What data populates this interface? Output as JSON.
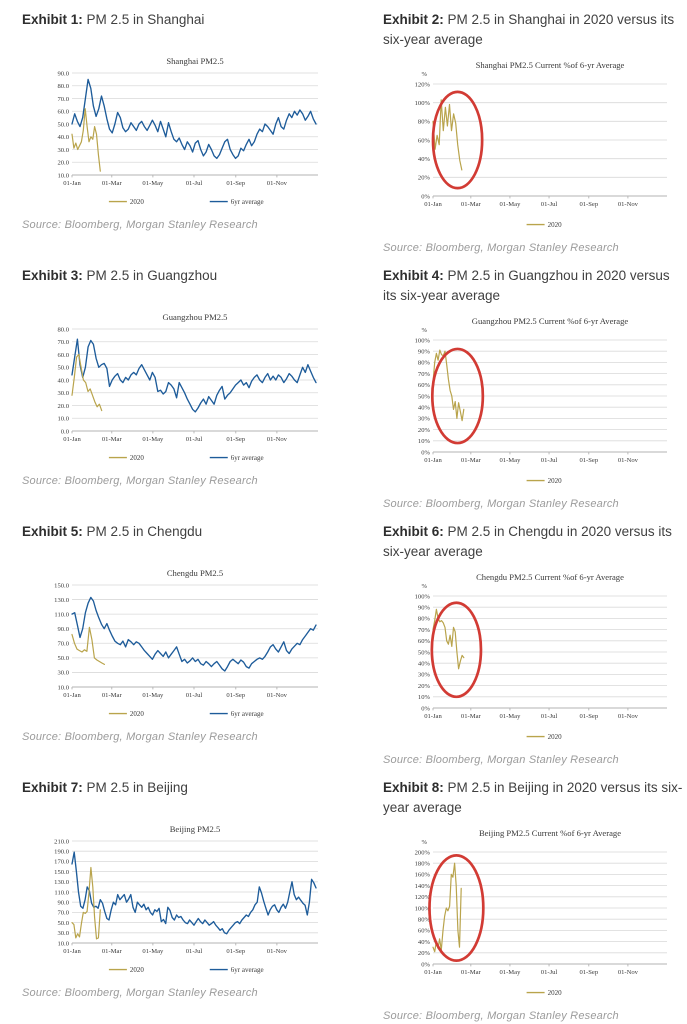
{
  "colors": {
    "series_2020": "#b9a44c",
    "series_6yr": "#1e5c9a",
    "annotation_red": "#d23b34",
    "grid": "#d9d9d9",
    "axis": "#b3b3b3",
    "chart_text": "#3a3a3a",
    "header_text": "#404040",
    "source_text": "#9b9b9b"
  },
  "panels": [
    {
      "exhibit_label": "Exhibit 1:",
      "description": "PM 2.5 in Shanghai",
      "source": "Source: Bloomberg, Morgan Stanley Research"
    },
    {
      "exhibit_label": "Exhibit 2:",
      "description": "PM 2.5 in Shanghai in 2020 versus its six-year average",
      "source": "Source: Bloomberg, Morgan Stanley Research"
    },
    {
      "exhibit_label": "Exhibit 3:",
      "description": "PM 2.5 in Guangzhou",
      "source": "Source: Bloomberg, Morgan Stanley Research"
    },
    {
      "exhibit_label": "Exhibit 4:",
      "description": "PM 2.5 in Guangzhou in 2020 versus its six-year average",
      "source": "Source: Bloomberg, Morgan Stanley Research"
    },
    {
      "exhibit_label": "Exhibit 5:",
      "description": "PM 2.5 in Chengdu",
      "source": "Source: Bloomberg, Morgan Stanley Research"
    },
    {
      "exhibit_label": "Exhibit 6:",
      "description": "PM 2.5 in Chengdu in 2020 versus its six-year average",
      "source": "Source: Bloomberg, Morgan Stanley Research"
    },
    {
      "exhibit_label": "Exhibit 7:",
      "description": "PM 2.5 in Beijing",
      "source": "Source: Bloomberg, Morgan Stanley Research"
    },
    {
      "exhibit_label": "Exhibit 8:",
      "description": "PM 2.5 in Beijing in 2020 versus its six-year average",
      "source": "Source: Bloomberg, Morgan Stanley Research"
    }
  ],
  "chart_data": [
    {
      "type": "line",
      "title": "Shanghai PM2.5",
      "ylim": [
        10,
        90
      ],
      "ytick_step": 10,
      "ytick_format": "1dp",
      "percent_label": null,
      "xticks": [
        "01-Jan",
        "01-Mar",
        "01-May",
        "01-Jul",
        "01-Sep",
        "01-Nov"
      ],
      "legend": [
        "2020",
        "6yr average"
      ],
      "annotation_ellipse": null,
      "series": [
        {
          "name": "2020",
          "color": "series_2020",
          "x_range": [
            0,
            42
          ],
          "values": [
            42,
            31,
            35,
            30,
            33,
            36,
            45,
            62,
            48,
            36,
            40,
            38,
            48,
            42,
            26,
            13
          ]
        },
        {
          "name": "6yr average",
          "color": "series_6yr",
          "x_range": [
            0,
            362
          ],
          "values": [
            50,
            58,
            52,
            48,
            55,
            70,
            85,
            78,
            64,
            56,
            62,
            72,
            64,
            54,
            46,
            43,
            50,
            59,
            55,
            47,
            44,
            46,
            51,
            48,
            45,
            50,
            52,
            48,
            45,
            49,
            53,
            49,
            44,
            52,
            46,
            40,
            51,
            44,
            38,
            36,
            39,
            34,
            30,
            36,
            33,
            28,
            35,
            37,
            30,
            25,
            28,
            34,
            30,
            25,
            23,
            26,
            31,
            36,
            38,
            30,
            26,
            23,
            25,
            31,
            29,
            34,
            38,
            33,
            36,
            42,
            46,
            44,
            50,
            48,
            45,
            42,
            50,
            55,
            48,
            46,
            53,
            58,
            55,
            60,
            57,
            61,
            58,
            53,
            56,
            60,
            54,
            50
          ]
        }
      ]
    },
    {
      "type": "line",
      "title": "Shanghai PM2.5 Current %of 6-yr Average",
      "ylim": [
        0,
        120
      ],
      "ytick_step": 20,
      "ytick_format": "pct",
      "percent_label": "%",
      "xticks": [
        "01-Jan",
        "01-Mar",
        "01-May",
        "01-Jul",
        "01-Sep",
        "01-Nov"
      ],
      "legend": [
        "2020"
      ],
      "annotation_ellipse": {
        "cx_frac": 0.105,
        "cy_frac": 0.5,
        "rx_frac": 0.105,
        "ry_frac": 0.43
      },
      "series": [
        {
          "name": "2020",
          "color": "series_2020",
          "x_range": [
            0,
            45
          ],
          "values": [
            80,
            50,
            65,
            55,
            103,
            70,
            95,
            75,
            98,
            70,
            88,
            78,
            55,
            38,
            28
          ]
        }
      ]
    },
    {
      "type": "line",
      "title": "Guangzhou PM2.5",
      "ylim": [
        0,
        80
      ],
      "ytick_step": 10,
      "ytick_format": "1dp",
      "percent_label": null,
      "xticks": [
        "01-Jan",
        "01-Mar",
        "01-May",
        "01-Jul",
        "01-Sep",
        "01-Nov"
      ],
      "legend": [
        "2020",
        "6yr average"
      ],
      "annotation_ellipse": null,
      "series": [
        {
          "name": "2020",
          "color": "series_2020",
          "x_range": [
            0,
            44
          ],
          "values": [
            28,
            42,
            58,
            60,
            50,
            40,
            38,
            31,
            33,
            28,
            23,
            19,
            21,
            16
          ]
        },
        {
          "name": "6yr average",
          "color": "series_6yr",
          "x_range": [
            0,
            362
          ],
          "values": [
            44,
            58,
            72,
            52,
            42,
            50,
            66,
            71,
            68,
            57,
            50,
            52,
            53,
            49,
            35,
            40,
            43,
            45,
            40,
            38,
            42,
            40,
            44,
            46,
            44,
            49,
            52,
            48,
            44,
            40,
            46,
            42,
            31,
            32,
            29,
            31,
            38,
            36,
            33,
            26,
            38,
            34,
            30,
            25,
            21,
            17,
            15,
            18,
            22,
            25,
            21,
            27,
            24,
            21,
            28,
            32,
            35,
            25,
            28,
            30,
            33,
            36,
            38,
            40,
            36,
            38,
            34,
            39,
            42,
            44,
            40,
            38,
            42,
            45,
            40,
            43,
            40,
            44,
            42,
            38,
            41,
            45,
            43,
            40,
            38,
            44,
            50,
            46,
            52,
            47,
            42,
            38
          ]
        }
      ]
    },
    {
      "type": "line",
      "title": "Guangzhou PM2.5 Current %of 6-yr Average",
      "ylim": [
        0,
        100
      ],
      "ytick_step": 10,
      "ytick_format": "pct",
      "percent_label": "%",
      "xticks": [
        "01-Jan",
        "01-Mar",
        "01-May",
        "01-Jul",
        "01-Sep",
        "01-Nov"
      ],
      "legend": [
        "2020"
      ],
      "annotation_ellipse": {
        "cx_frac": 0.105,
        "cy_frac": 0.5,
        "rx_frac": 0.108,
        "ry_frac": 0.42
      },
      "series": [
        {
          "name": "2020",
          "color": "series_2020",
          "x_range": [
            0,
            48
          ],
          "values": [
            62,
            80,
            88,
            82,
            91,
            87,
            86,
            90,
            78,
            65,
            55,
            50,
            38,
            45,
            30,
            44,
            36,
            28,
            38
          ]
        }
      ]
    },
    {
      "type": "line",
      "title": "Chengdu PM2.5",
      "ylim": [
        10,
        150
      ],
      "ytick_step": 20,
      "ytick_format": "1dp",
      "percent_label": null,
      "xticks": [
        "01-Jan",
        "01-Mar",
        "01-May",
        "01-Jul",
        "01-Sep",
        "01-Nov"
      ],
      "legend": [
        "2020",
        "6yr average"
      ],
      "annotation_ellipse": null,
      "series": [
        {
          "name": "2020",
          "color": "series_2020",
          "x_range": [
            0,
            48
          ],
          "values": [
            82,
            70,
            62,
            60,
            58,
            61,
            59,
            92,
            75,
            50,
            47,
            45,
            43,
            41
          ]
        },
        {
          "name": "6yr average",
          "color": "series_6yr",
          "x_range": [
            0,
            362
          ],
          "values": [
            110,
            112,
            95,
            78,
            90,
            112,
            125,
            133,
            128,
            115,
            105,
            96,
            90,
            97,
            88,
            80,
            73,
            70,
            68,
            73,
            65,
            75,
            72,
            68,
            72,
            70,
            65,
            60,
            56,
            52,
            48,
            55,
            60,
            56,
            52,
            58,
            50,
            55,
            60,
            65,
            55,
            45,
            48,
            43,
            46,
            50,
            45,
            48,
            42,
            40,
            45,
            42,
            38,
            42,
            45,
            40,
            35,
            32,
            38,
            45,
            48,
            45,
            42,
            47,
            44,
            38,
            36,
            42,
            45,
            48,
            50,
            48,
            52,
            58,
            65,
            68,
            62,
            58,
            65,
            72,
            60,
            56,
            62,
            66,
            70,
            68,
            75,
            80,
            85,
            90,
            88,
            95
          ]
        }
      ]
    },
    {
      "type": "line",
      "title": "Chengdu PM2.5 Current %of 6-yr Average",
      "ylim": [
        0,
        100
      ],
      "ytick_step": 10,
      "ytick_format": "pct",
      "percent_label": "%",
      "xticks": [
        "01-Jan",
        "01-Mar",
        "01-May",
        "01-Jul",
        "01-Sep",
        "01-Nov"
      ],
      "legend": [
        "2020"
      ],
      "annotation_ellipse": {
        "cx_frac": 0.1,
        "cy_frac": 0.48,
        "rx_frac": 0.105,
        "ry_frac": 0.42
      },
      "series": [
        {
          "name": "2020",
          "color": "series_2020",
          "x_range": [
            0,
            48
          ],
          "values": [
            70,
            78,
            88,
            80,
            77,
            78,
            76,
            72,
            60,
            57,
            65,
            55,
            72,
            68,
            50,
            35,
            42,
            47,
            45
          ]
        }
      ]
    },
    {
      "type": "line",
      "title": "Beijing PM2.5",
      "ylim": [
        10,
        210
      ],
      "ytick_step": 20,
      "ytick_format": "1dp",
      "percent_label": null,
      "xticks": [
        "01-Jan",
        "01-Mar",
        "01-May",
        "01-Jul",
        "01-Sep",
        "01-Nov"
      ],
      "legend": [
        "2020",
        "6yr average"
      ],
      "annotation_ellipse": null,
      "series": [
        {
          "name": "2020",
          "color": "series_2020",
          "x_range": [
            0,
            42
          ],
          "values": [
            50,
            46,
            20,
            28,
            22,
            48,
            70,
            68,
            72,
            110,
            158,
            120,
            60,
            18,
            20,
            75
          ]
        },
        {
          "name": "6yr average",
          "color": "series_6yr",
          "x_range": [
            0,
            362
          ],
          "values": [
            165,
            188,
            150,
            110,
            82,
            78,
            95,
            120,
            112,
            88,
            80,
            82,
            78,
            95,
            88,
            72,
            58,
            55,
            75,
            90,
            85,
            105,
            95,
            100,
            105,
            90,
            96,
            105,
            80,
            70,
            90,
            85,
            80,
            86,
            75,
            80,
            70,
            65,
            75,
            72,
            78,
            52,
            56,
            48,
            80,
            74,
            60,
            55,
            65,
            60,
            62,
            55,
            50,
            48,
            55,
            50,
            45,
            52,
            58,
            52,
            48,
            55,
            50,
            45,
            48,
            52,
            45,
            40,
            35,
            38,
            30,
            28,
            35,
            40,
            45,
            50,
            52,
            48,
            55,
            60,
            65,
            62,
            70,
            75,
            85,
            90,
            120,
            108,
            92,
            78,
            65,
            75,
            82,
            85,
            75,
            70,
            80,
            86,
            78,
            90,
            110,
            130,
            105,
            95,
            100,
            94,
            88,
            84,
            65,
            90,
            135,
            128,
            118
          ]
        }
      ]
    },
    {
      "type": "line",
      "title": "Beijing PM2.5 Current %of 6-yr Average",
      "ylim": [
        0,
        200
      ],
      "ytick_step": 20,
      "ytick_format": "pct",
      "percent_label": "%",
      "xticks": [
        "01-Jan",
        "01-Mar",
        "01-May",
        "01-Jul",
        "01-Sep",
        "01-Nov"
      ],
      "legend": [
        "2020"
      ],
      "annotation_ellipse": {
        "cx_frac": 0.1,
        "cy_frac": 0.5,
        "rx_frac": 0.115,
        "ry_frac": 0.47
      },
      "series": [
        {
          "name": "2020",
          "color": "series_2020",
          "x_range": [
            0,
            44
          ],
          "values": [
            30,
            22,
            40,
            28,
            45,
            25,
            60,
            85,
            100,
            95,
            103,
            160,
            155,
            180,
            140,
            60,
            30,
            135
          ]
        }
      ]
    }
  ]
}
